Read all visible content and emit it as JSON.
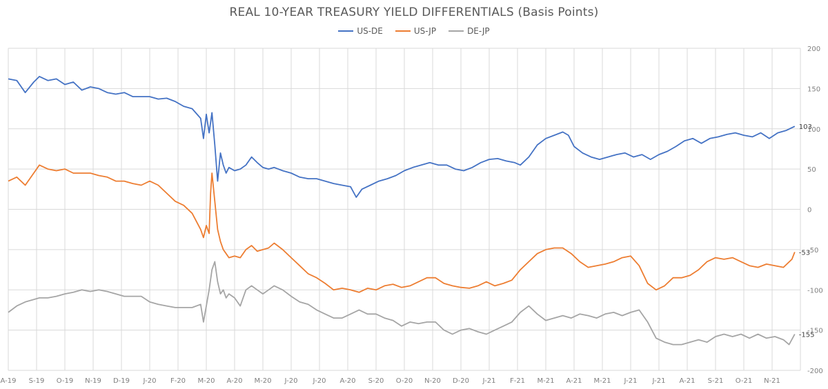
{
  "chart_data": {
    "type": "line",
    "title": "REAL 10-YEAR TREASURY YIELD DIFFERENTIALS (Basis Points)",
    "xlabel": "",
    "ylabel": "",
    "ylim": [
      -200,
      200
    ],
    "y_ticks": [
      200,
      150,
      100,
      50,
      0,
      -50,
      -100,
      -150,
      -200
    ],
    "y_axis_position": "right",
    "grid": true,
    "legend_position": "top-center",
    "x_tick_labels": [
      "A-19",
      "S-19",
      "O-19",
      "N-19",
      "D-19",
      "J-20",
      "F-20",
      "M-20",
      "A-20",
      "M-20",
      "J-20",
      "J-20",
      "A-20",
      "S-20",
      "O-20",
      "N-20",
      "D-20",
      "J-21",
      "F-21",
      "M-21",
      "A-21",
      "M-21",
      "J-21",
      "J-21",
      "A-21",
      "S-21",
      "O-21",
      "N-21"
    ],
    "end_labels": [
      "103",
      "-53",
      "-155"
    ],
    "series": [
      {
        "name": "US-DE",
        "color": "#4472c4",
        "end_value": 103,
        "points": [
          [
            0,
            162
          ],
          [
            0.3,
            160
          ],
          [
            0.6,
            145
          ],
          [
            0.9,
            158
          ],
          [
            1.1,
            165
          ],
          [
            1.4,
            160
          ],
          [
            1.7,
            162
          ],
          [
            2,
            155
          ],
          [
            2.3,
            158
          ],
          [
            2.6,
            148
          ],
          [
            2.9,
            152
          ],
          [
            3.2,
            150
          ],
          [
            3.5,
            145
          ],
          [
            3.8,
            143
          ],
          [
            4.1,
            145
          ],
          [
            4.4,
            140
          ],
          [
            4.7,
            140
          ],
          [
            5,
            140
          ],
          [
            5.3,
            137
          ],
          [
            5.6,
            138
          ],
          [
            5.9,
            134
          ],
          [
            6.2,
            128
          ],
          [
            6.5,
            125
          ],
          [
            6.8,
            113
          ],
          [
            6.9,
            88
          ],
          [
            7,
            118
          ],
          [
            7.1,
            95
          ],
          [
            7.2,
            120
          ],
          [
            7.3,
            80
          ],
          [
            7.4,
            35
          ],
          [
            7.5,
            70
          ],
          [
            7.6,
            55
          ],
          [
            7.7,
            45
          ],
          [
            7.8,
            52
          ],
          [
            8,
            48
          ],
          [
            8.2,
            50
          ],
          [
            8.4,
            55
          ],
          [
            8.6,
            65
          ],
          [
            8.8,
            58
          ],
          [
            9,
            52
          ],
          [
            9.2,
            50
          ],
          [
            9.4,
            52
          ],
          [
            9.7,
            48
          ],
          [
            10,
            45
          ],
          [
            10.3,
            40
          ],
          [
            10.6,
            38
          ],
          [
            10.9,
            38
          ],
          [
            11.2,
            35
          ],
          [
            11.5,
            32
          ],
          [
            11.8,
            30
          ],
          [
            12.1,
            28
          ],
          [
            12.3,
            15
          ],
          [
            12.5,
            25
          ],
          [
            12.8,
            30
          ],
          [
            13.1,
            35
          ],
          [
            13.4,
            38
          ],
          [
            13.7,
            42
          ],
          [
            14,
            48
          ],
          [
            14.3,
            52
          ],
          [
            14.6,
            55
          ],
          [
            14.9,
            58
          ],
          [
            15.2,
            55
          ],
          [
            15.5,
            55
          ],
          [
            15.8,
            50
          ],
          [
            16.1,
            48
          ],
          [
            16.4,
            52
          ],
          [
            16.7,
            58
          ],
          [
            17,
            62
          ],
          [
            17.3,
            63
          ],
          [
            17.6,
            60
          ],
          [
            17.9,
            58
          ],
          [
            18.1,
            55
          ],
          [
            18.4,
            65
          ],
          [
            18.7,
            80
          ],
          [
            19,
            88
          ],
          [
            19.3,
            92
          ],
          [
            19.6,
            96
          ],
          [
            19.8,
            92
          ],
          [
            20,
            78
          ],
          [
            20.3,
            70
          ],
          [
            20.6,
            65
          ],
          [
            20.9,
            62
          ],
          [
            21.2,
            65
          ],
          [
            21.5,
            68
          ],
          [
            21.8,
            70
          ],
          [
            22.1,
            65
          ],
          [
            22.4,
            68
          ],
          [
            22.7,
            62
          ],
          [
            23,
            68
          ],
          [
            23.3,
            72
          ],
          [
            23.6,
            78
          ],
          [
            23.9,
            85
          ],
          [
            24.2,
            88
          ],
          [
            24.5,
            82
          ],
          [
            24.8,
            88
          ],
          [
            25.1,
            90
          ],
          [
            25.4,
            93
          ],
          [
            25.7,
            95
          ],
          [
            26,
            92
          ],
          [
            26.3,
            90
          ],
          [
            26.6,
            95
          ],
          [
            26.9,
            88
          ],
          [
            27.2,
            95
          ],
          [
            27.5,
            98
          ],
          [
            27.8,
            103
          ]
        ]
      },
      {
        "name": "US-JP",
        "color": "#ed7d31",
        "end_value": -53,
        "points": [
          [
            0,
            35
          ],
          [
            0.3,
            40
          ],
          [
            0.6,
            30
          ],
          [
            0.9,
            45
          ],
          [
            1.1,
            55
          ],
          [
            1.4,
            50
          ],
          [
            1.7,
            48
          ],
          [
            2,
            50
          ],
          [
            2.3,
            45
          ],
          [
            2.6,
            45
          ],
          [
            2.9,
            45
          ],
          [
            3.2,
            42
          ],
          [
            3.5,
            40
          ],
          [
            3.8,
            35
          ],
          [
            4.1,
            35
          ],
          [
            4.4,
            32
          ],
          [
            4.7,
            30
          ],
          [
            5,
            35
          ],
          [
            5.3,
            30
          ],
          [
            5.6,
            20
          ],
          [
            5.9,
            10
          ],
          [
            6.2,
            5
          ],
          [
            6.5,
            -5
          ],
          [
            6.8,
            -25
          ],
          [
            6.9,
            -35
          ],
          [
            7,
            -20
          ],
          [
            7.1,
            -30
          ],
          [
            7.15,
            20
          ],
          [
            7.2,
            45
          ],
          [
            7.3,
            10
          ],
          [
            7.4,
            -25
          ],
          [
            7.5,
            -40
          ],
          [
            7.6,
            -50
          ],
          [
            7.7,
            -55
          ],
          [
            7.8,
            -60
          ],
          [
            8,
            -58
          ],
          [
            8.2,
            -60
          ],
          [
            8.4,
            -50
          ],
          [
            8.6,
            -45
          ],
          [
            8.8,
            -52
          ],
          [
            9,
            -50
          ],
          [
            9.2,
            -48
          ],
          [
            9.4,
            -42
          ],
          [
            9.7,
            -50
          ],
          [
            10,
            -60
          ],
          [
            10.3,
            -70
          ],
          [
            10.6,
            -80
          ],
          [
            10.9,
            -85
          ],
          [
            11.2,
            -92
          ],
          [
            11.5,
            -100
          ],
          [
            11.8,
            -98
          ],
          [
            12.1,
            -100
          ],
          [
            12.4,
            -103
          ],
          [
            12.7,
            -98
          ],
          [
            13,
            -100
          ],
          [
            13.3,
            -95
          ],
          [
            13.6,
            -93
          ],
          [
            13.9,
            -97
          ],
          [
            14.2,
            -95
          ],
          [
            14.5,
            -90
          ],
          [
            14.8,
            -85
          ],
          [
            15.1,
            -85
          ],
          [
            15.4,
            -92
          ],
          [
            15.7,
            -95
          ],
          [
            16,
            -97
          ],
          [
            16.3,
            -98
          ],
          [
            16.6,
            -95
          ],
          [
            16.9,
            -90
          ],
          [
            17.2,
            -95
          ],
          [
            17.5,
            -92
          ],
          [
            17.8,
            -88
          ],
          [
            18.1,
            -75
          ],
          [
            18.4,
            -65
          ],
          [
            18.7,
            -55
          ],
          [
            19,
            -50
          ],
          [
            19.3,
            -48
          ],
          [
            19.6,
            -48
          ],
          [
            19.9,
            -55
          ],
          [
            20.2,
            -65
          ],
          [
            20.5,
            -72
          ],
          [
            20.8,
            -70
          ],
          [
            21.1,
            -68
          ],
          [
            21.4,
            -65
          ],
          [
            21.7,
            -60
          ],
          [
            22,
            -58
          ],
          [
            22.3,
            -70
          ],
          [
            22.6,
            -92
          ],
          [
            22.9,
            -100
          ],
          [
            23.2,
            -95
          ],
          [
            23.5,
            -85
          ],
          [
            23.8,
            -85
          ],
          [
            24.1,
            -82
          ],
          [
            24.4,
            -75
          ],
          [
            24.7,
            -65
          ],
          [
            25,
            -60
          ],
          [
            25.3,
            -62
          ],
          [
            25.6,
            -60
          ],
          [
            25.9,
            -65
          ],
          [
            26.2,
            -70
          ],
          [
            26.5,
            -72
          ],
          [
            26.8,
            -68
          ],
          [
            27.1,
            -70
          ],
          [
            27.4,
            -72
          ],
          [
            27.7,
            -62
          ],
          [
            27.8,
            -53
          ]
        ]
      },
      {
        "name": "DE-JP",
        "color": "#a5a5a5",
        "end_value": -155,
        "points": [
          [
            0,
            -128
          ],
          [
            0.3,
            -120
          ],
          [
            0.6,
            -115
          ],
          [
            0.9,
            -112
          ],
          [
            1.1,
            -110
          ],
          [
            1.4,
            -110
          ],
          [
            1.7,
            -108
          ],
          [
            2,
            -105
          ],
          [
            2.3,
            -103
          ],
          [
            2.6,
            -100
          ],
          [
            2.9,
            -102
          ],
          [
            3.2,
            -100
          ],
          [
            3.5,
            -102
          ],
          [
            3.8,
            -105
          ],
          [
            4.1,
            -108
          ],
          [
            4.4,
            -108
          ],
          [
            4.7,
            -108
          ],
          [
            5,
            -115
          ],
          [
            5.3,
            -118
          ],
          [
            5.6,
            -120
          ],
          [
            5.9,
            -122
          ],
          [
            6.2,
            -122
          ],
          [
            6.5,
            -122
          ],
          [
            6.8,
            -118
          ],
          [
            6.9,
            -140
          ],
          [
            7,
            -120
          ],
          [
            7.1,
            -100
          ],
          [
            7.2,
            -75
          ],
          [
            7.3,
            -65
          ],
          [
            7.4,
            -90
          ],
          [
            7.5,
            -105
          ],
          [
            7.6,
            -100
          ],
          [
            7.7,
            -110
          ],
          [
            7.8,
            -105
          ],
          [
            8,
            -110
          ],
          [
            8.2,
            -120
          ],
          [
            8.4,
            -100
          ],
          [
            8.6,
            -95
          ],
          [
            8.8,
            -100
          ],
          [
            9,
            -105
          ],
          [
            9.2,
            -100
          ],
          [
            9.4,
            -95
          ],
          [
            9.7,
            -100
          ],
          [
            10,
            -108
          ],
          [
            10.3,
            -115
          ],
          [
            10.6,
            -118
          ],
          [
            10.9,
            -125
          ],
          [
            11.2,
            -130
          ],
          [
            11.5,
            -135
          ],
          [
            11.8,
            -135
          ],
          [
            12.1,
            -130
          ],
          [
            12.4,
            -125
          ],
          [
            12.7,
            -130
          ],
          [
            13,
            -130
          ],
          [
            13.3,
            -135
          ],
          [
            13.6,
            -138
          ],
          [
            13.9,
            -145
          ],
          [
            14.2,
            -140
          ],
          [
            14.5,
            -142
          ],
          [
            14.8,
            -140
          ],
          [
            15.1,
            -140
          ],
          [
            15.4,
            -150
          ],
          [
            15.7,
            -155
          ],
          [
            16,
            -150
          ],
          [
            16.3,
            -148
          ],
          [
            16.6,
            -152
          ],
          [
            16.9,
            -155
          ],
          [
            17.2,
            -150
          ],
          [
            17.5,
            -145
          ],
          [
            17.8,
            -140
          ],
          [
            18.1,
            -128
          ],
          [
            18.4,
            -120
          ],
          [
            18.7,
            -130
          ],
          [
            19,
            -138
          ],
          [
            19.3,
            -135
          ],
          [
            19.6,
            -132
          ],
          [
            19.9,
            -135
          ],
          [
            20.2,
            -130
          ],
          [
            20.5,
            -132
          ],
          [
            20.8,
            -135
          ],
          [
            21.1,
            -130
          ],
          [
            21.4,
            -128
          ],
          [
            21.7,
            -132
          ],
          [
            22,
            -128
          ],
          [
            22.3,
            -125
          ],
          [
            22.6,
            -140
          ],
          [
            22.9,
            -160
          ],
          [
            23.2,
            -165
          ],
          [
            23.5,
            -168
          ],
          [
            23.8,
            -168
          ],
          [
            24.1,
            -165
          ],
          [
            24.4,
            -162
          ],
          [
            24.7,
            -165
          ],
          [
            25,
            -158
          ],
          [
            25.3,
            -155
          ],
          [
            25.6,
            -158
          ],
          [
            25.9,
            -155
          ],
          [
            26.2,
            -160
          ],
          [
            26.5,
            -155
          ],
          [
            26.8,
            -160
          ],
          [
            27.1,
            -158
          ],
          [
            27.4,
            -162
          ],
          [
            27.6,
            -168
          ],
          [
            27.8,
            -155
          ]
        ]
      }
    ]
  }
}
